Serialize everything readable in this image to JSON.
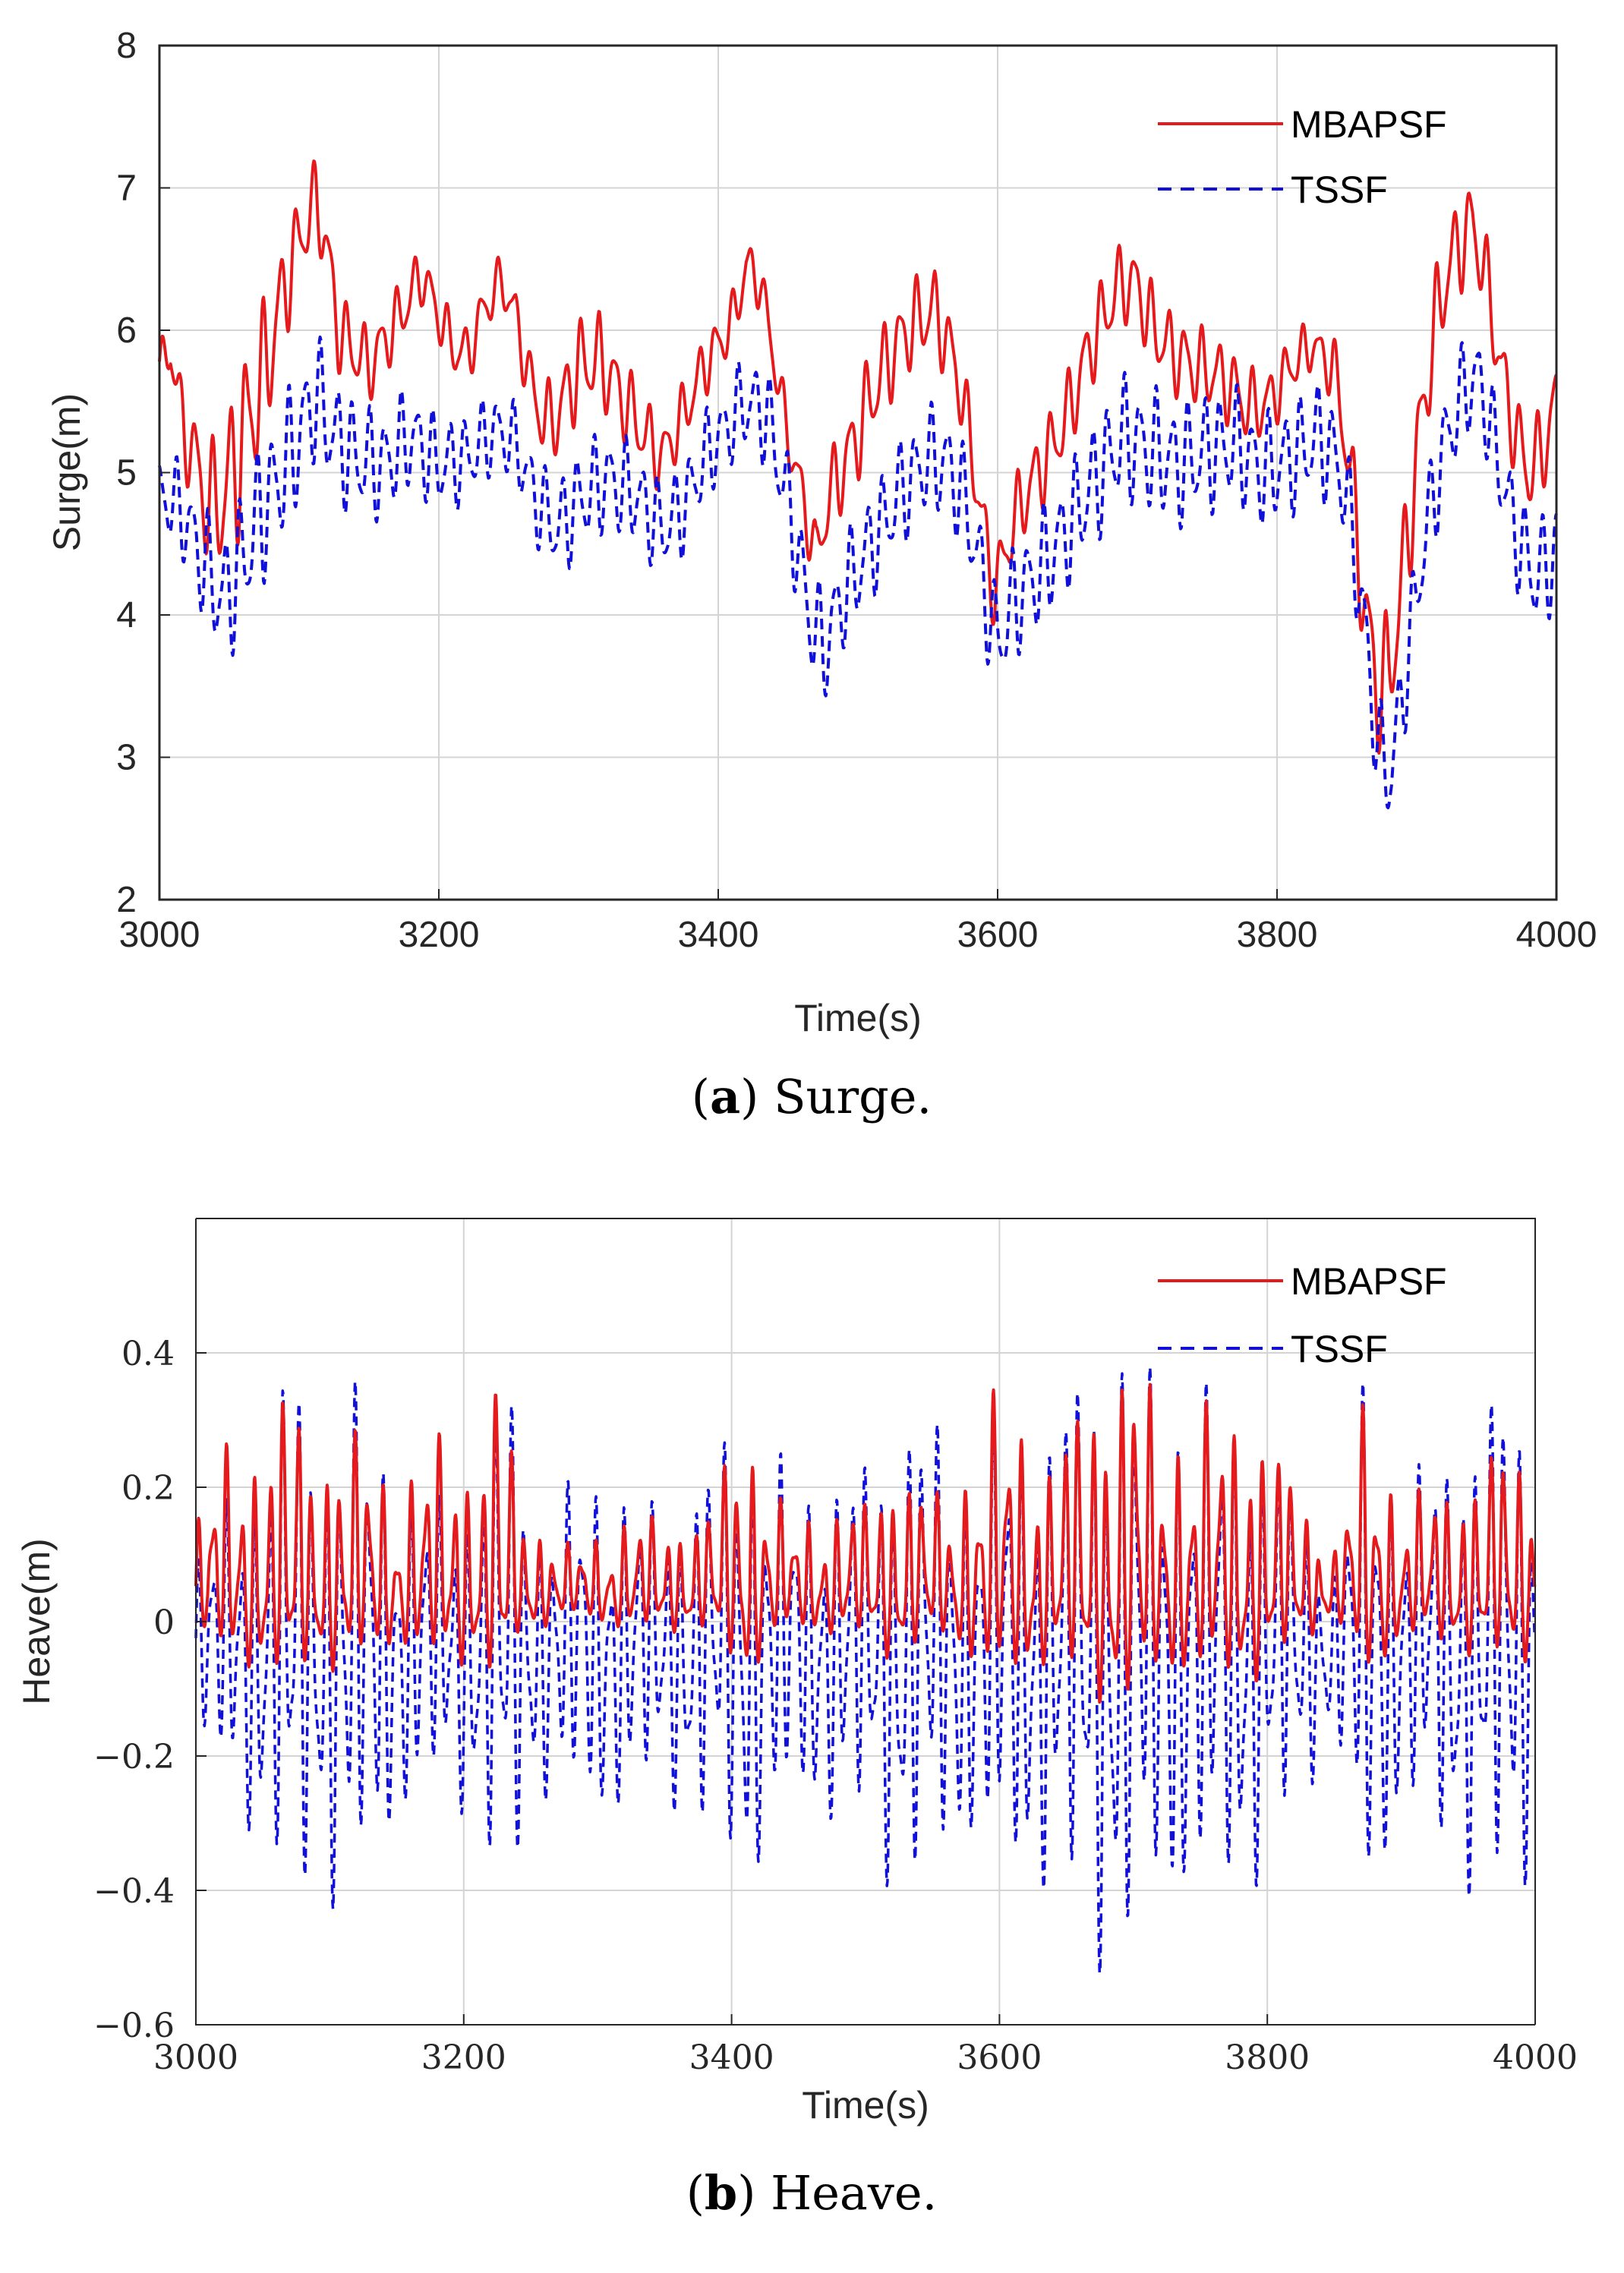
{
  "colors": {
    "mbapsf": "#e41a1c",
    "tssf": "#1010d8",
    "grid": "#d4d4d4",
    "axis": "#262626"
  },
  "chart_data": [
    {
      "id": "surge",
      "type": "line",
      "caption_letter": "a",
      "caption_text": "Surge.",
      "xlabel": "Time(s)",
      "ylabel": "Surge(m)",
      "xlim": [
        3000,
        4000
      ],
      "ylim": [
        2,
        8
      ],
      "xticks": [
        3000,
        3200,
        3400,
        3600,
        3800,
        4000
      ],
      "xtick_labels": [
        "3000",
        "3200",
        "3400",
        "3600",
        "3800",
        "4000"
      ],
      "yticks": [
        2,
        3,
        4,
        5,
        6,
        7,
        8
      ],
      "ytick_labels": [
        "2",
        "3",
        "4",
        "5",
        "6",
        "7",
        "8"
      ],
      "grid": true,
      "legend_position": "top-right",
      "series": [
        {
          "name": "MBAPSF",
          "style": "solid",
          "color": "#e41a1c",
          "envelope": [
            [
              3000,
              5.7
            ],
            [
              3008,
              5.9
            ],
            [
              3015,
              5.4
            ],
            [
              3025,
              5.1
            ],
            [
              3035,
              4.75
            ],
            [
              3045,
              4.8
            ],
            [
              3055,
              5.1
            ],
            [
              3065,
              5.4
            ],
            [
              3075,
              5.7
            ],
            [
              3085,
              6.1
            ],
            [
              3095,
              6.5
            ],
            [
              3105,
              6.75
            ],
            [
              3112,
              6.9
            ],
            [
              3118,
              6.7
            ],
            [
              3128,
              6.0
            ],
            [
              3140,
              5.85
            ],
            [
              3150,
              5.75
            ],
            [
              3160,
              5.9
            ],
            [
              3175,
              6.15
            ],
            [
              3188,
              6.4
            ],
            [
              3200,
              6.1
            ],
            [
              3212,
              5.85
            ],
            [
              3222,
              5.85
            ],
            [
              3232,
              6.15
            ],
            [
              3245,
              6.35
            ],
            [
              3255,
              6.1
            ],
            [
              3265,
              5.65
            ],
            [
              3275,
              5.35
            ],
            [
              3285,
              5.4
            ],
            [
              3300,
              5.75
            ],
            [
              3315,
              5.8
            ],
            [
              3330,
              5.55
            ],
            [
              3345,
              5.3
            ],
            [
              3360,
              5.1
            ],
            [
              3375,
              5.4
            ],
            [
              3390,
              5.75
            ],
            [
              3400,
              5.9
            ],
            [
              3410,
              6.05
            ],
            [
              3420,
              6.45
            ],
            [
              3430,
              6.35
            ],
            [
              3440,
              5.8
            ],
            [
              3450,
              5.25
            ],
            [
              3460,
              4.85
            ],
            [
              3470,
              4.4
            ],
            [
              3480,
              4.85
            ],
            [
              3495,
              5.15
            ],
            [
              3510,
              5.55
            ],
            [
              3525,
              5.85
            ],
            [
              3540,
              6.05
            ],
            [
              3555,
              6.15
            ],
            [
              3570,
              5.75
            ],
            [
              3580,
              5.25
            ],
            [
              3590,
              4.6
            ],
            [
              3598,
              4.15
            ],
            [
              3608,
              4.55
            ],
            [
              3620,
              4.85
            ],
            [
              3635,
              5.1
            ],
            [
              3650,
              5.4
            ],
            [
              3665,
              5.85
            ],
            [
              3678,
              6.15
            ],
            [
              3690,
              6.35
            ],
            [
              3700,
              6.3
            ],
            [
              3712,
              6.0
            ],
            [
              3725,
              5.85
            ],
            [
              3740,
              5.75
            ],
            [
              3755,
              5.7
            ],
            [
              3768,
              5.6
            ],
            [
              3780,
              5.45
            ],
            [
              3795,
              5.5
            ],
            [
              3810,
              5.75
            ],
            [
              3825,
              5.9
            ],
            [
              3840,
              5.75
            ],
            [
              3850,
              5.2
            ],
            [
              3858,
              4.5
            ],
            [
              3865,
              3.85
            ],
            [
              3872,
              3.5
            ],
            [
              3880,
              3.55
            ],
            [
              3890,
              4.25
            ],
            [
              3900,
              5.1
            ],
            [
              3910,
              5.85
            ],
            [
              3920,
              6.35
            ],
            [
              3930,
              6.6
            ],
            [
              3940,
              6.75
            ],
            [
              3950,
              6.35
            ],
            [
              3960,
              5.75
            ],
            [
              3970,
              5.3
            ],
            [
              3980,
              5.0
            ],
            [
              3990,
              5.15
            ],
            [
              4000,
              5.5
            ]
          ],
          "oscillation": [
            [
              3000,
              0.15
            ],
            [
              3060,
              0.5
            ],
            [
              3100,
              0.25
            ],
            [
              3140,
              0.22
            ],
            [
              3200,
              0.16
            ],
            [
              3250,
              0.15
            ],
            [
              3300,
              0.28
            ],
            [
              3380,
              0.18
            ],
            [
              3450,
              0.15
            ],
            [
              3500,
              0.28
            ],
            [
              3580,
              0.22
            ],
            [
              3640,
              0.24
            ],
            [
              3700,
              0.24
            ],
            [
              3780,
              0.22
            ],
            [
              3830,
              0.14
            ],
            [
              3870,
              0.4
            ],
            [
              3950,
              0.24
            ],
            [
              4000,
              0.26
            ]
          ]
        },
        {
          "name": "TSSF",
          "style": "dashed",
          "color": "#1010d8",
          "envelope": [
            [
              3000,
              4.85
            ],
            [
              3015,
              4.75
            ],
            [
              3030,
              4.4
            ],
            [
              3045,
              4.1
            ],
            [
              3058,
              4.35
            ],
            [
              3072,
              4.7
            ],
            [
              3088,
              5.0
            ],
            [
              3100,
              5.25
            ],
            [
              3112,
              5.55
            ],
            [
              3125,
              5.25
            ],
            [
              3140,
              5.1
            ],
            [
              3160,
              5.05
            ],
            [
              3180,
              5.25
            ],
            [
              3200,
              5.05
            ],
            [
              3220,
              5.1
            ],
            [
              3240,
              5.3
            ],
            [
              3255,
              5.2
            ],
            [
              3270,
              4.8
            ],
            [
              3285,
              4.6
            ],
            [
              3300,
              4.8
            ],
            [
              3320,
              4.95
            ],
            [
              3340,
              4.85
            ],
            [
              3360,
              4.6
            ],
            [
              3375,
              4.75
            ],
            [
              3390,
              5.1
            ],
            [
              3405,
              5.3
            ],
            [
              3420,
              5.5
            ],
            [
              3435,
              5.4
            ],
            [
              3445,
              5.0
            ],
            [
              3455,
              4.55
            ],
            [
              3465,
              4.0
            ],
            [
              3475,
              3.75
            ],
            [
              3490,
              4.15
            ],
            [
              3510,
              4.5
            ],
            [
              3530,
              4.85
            ],
            [
              3550,
              5.1
            ],
            [
              3565,
              5.05
            ],
            [
              3578,
              4.75
            ],
            [
              3590,
              4.2
            ],
            [
              3600,
              3.8
            ],
            [
              3612,
              4.1
            ],
            [
              3630,
              4.3
            ],
            [
              3650,
              4.6
            ],
            [
              3670,
              4.95
            ],
            [
              3690,
              5.25
            ],
            [
              3710,
              5.15
            ],
            [
              3730,
              5.05
            ],
            [
              3750,
              5.15
            ],
            [
              3770,
              5.2
            ],
            [
              3790,
              5.0
            ],
            [
              3810,
              5.1
            ],
            [
              3830,
              5.25
            ],
            [
              3845,
              5.05
            ],
            [
              3855,
              4.5
            ],
            [
              3865,
              3.7
            ],
            [
              3873,
              3.0
            ],
            [
              3882,
              2.9
            ],
            [
              3892,
              3.6
            ],
            [
              3905,
              4.5
            ],
            [
              3920,
              5.2
            ],
            [
              3935,
              5.6
            ],
            [
              3945,
              5.65
            ],
            [
              3958,
              5.1
            ],
            [
              3970,
              4.6
            ],
            [
              3985,
              4.25
            ],
            [
              4000,
              4.45
            ]
          ],
          "oscillation": [
            [
              3000,
              0.22
            ],
            [
              3060,
              0.42
            ],
            [
              3100,
              0.38
            ],
            [
              3150,
              0.32
            ],
            [
              3250,
              0.22
            ],
            [
              3300,
              0.3
            ],
            [
              3400,
              0.25
            ],
            [
              3470,
              0.32
            ],
            [
              3550,
              0.3
            ],
            [
              3600,
              0.32
            ],
            [
              3700,
              0.36
            ],
            [
              3800,
              0.32
            ],
            [
              3870,
              0.32
            ],
            [
              3950,
              0.28
            ],
            [
              4000,
              0.32
            ]
          ]
        }
      ]
    },
    {
      "id": "heave",
      "type": "line",
      "caption_letter": "b",
      "caption_text": "Heave.",
      "xlabel": "Time(s)",
      "ylabel": "Heave(m)",
      "xlim": [
        3000,
        4000
      ],
      "ylim": [
        -0.6,
        0.6
      ],
      "xticks": [
        3000,
        3200,
        3400,
        3600,
        3800,
        4000
      ],
      "xtick_labels": [
        "3000",
        "3200",
        "3400",
        "3600",
        "3800",
        "4000"
      ],
      "yticks": [
        -0.6,
        -0.4,
        -0.2,
        0,
        0.2,
        0.4
      ],
      "ytick_labels": [
        "−0.6",
        "−0.4",
        "−0.2",
        "0",
        "0.2",
        "0.4"
      ],
      "grid": true,
      "legend_position": "top-right",
      "series": [
        {
          "name": "MBAPSF",
          "style": "solid",
          "color": "#e41a1c",
          "offset": 0.04,
          "amplitude": [
            [
              3000,
              0.1
            ],
            [
              3020,
              0.18
            ],
            [
              3060,
              0.22
            ],
            [
              3070,
              0.3
            ],
            [
              3085,
              0.18
            ],
            [
              3110,
              0.22
            ],
            [
              3150,
              0.14
            ],
            [
              3180,
              0.2
            ],
            [
              3215,
              0.18
            ],
            [
              3228,
              0.34
            ],
            [
              3240,
              0.12
            ],
            [
              3280,
              0.06
            ],
            [
              3320,
              0.1
            ],
            [
              3380,
              0.1
            ],
            [
              3410,
              0.24
            ],
            [
              3440,
              0.1
            ],
            [
              3500,
              0.12
            ],
            [
              3520,
              0.18
            ],
            [
              3560,
              0.12
            ],
            [
              3600,
              0.26
            ],
            [
              3640,
              0.18
            ],
            [
              3670,
              0.28
            ],
            [
              3700,
              0.32
            ],
            [
              3720,
              0.22
            ],
            [
              3770,
              0.24
            ],
            [
              3790,
              0.24
            ],
            [
              3820,
              0.15
            ],
            [
              3850,
              0.06
            ],
            [
              3875,
              0.26
            ],
            [
              3900,
              0.12
            ],
            [
              3940,
              0.15
            ],
            [
              3980,
              0.2
            ],
            [
              4000,
              0.18
            ]
          ]
        },
        {
          "name": "TSSF",
          "style": "dashed",
          "color": "#1010d8",
          "offset": -0.04,
          "amplitude": [
            [
              3000,
              0.12
            ],
            [
              3030,
              0.2
            ],
            [
              3060,
              0.28
            ],
            [
              3070,
              0.42
            ],
            [
              3090,
              0.25
            ],
            [
              3110,
              0.36
            ],
            [
              3150,
              0.22
            ],
            [
              3190,
              0.18
            ],
            [
              3215,
              0.24
            ],
            [
              3230,
              0.4
            ],
            [
              3250,
              0.18
            ],
            [
              3300,
              0.22
            ],
            [
              3350,
              0.18
            ],
            [
              3410,
              0.3
            ],
            [
              3450,
              0.2
            ],
            [
              3500,
              0.24
            ],
            [
              3530,
              0.32
            ],
            [
              3580,
              0.24
            ],
            [
              3600,
              0.3
            ],
            [
              3640,
              0.3
            ],
            [
              3660,
              0.36
            ],
            [
              3690,
              0.42
            ],
            [
              3720,
              0.32
            ],
            [
              3780,
              0.32
            ],
            [
              3820,
              0.22
            ],
            [
              3850,
              0.1
            ],
            [
              3875,
              0.36
            ],
            [
              3900,
              0.2
            ],
            [
              3940,
              0.28
            ],
            [
              3975,
              0.34
            ],
            [
              4000,
              0.28
            ]
          ]
        }
      ]
    }
  ]
}
